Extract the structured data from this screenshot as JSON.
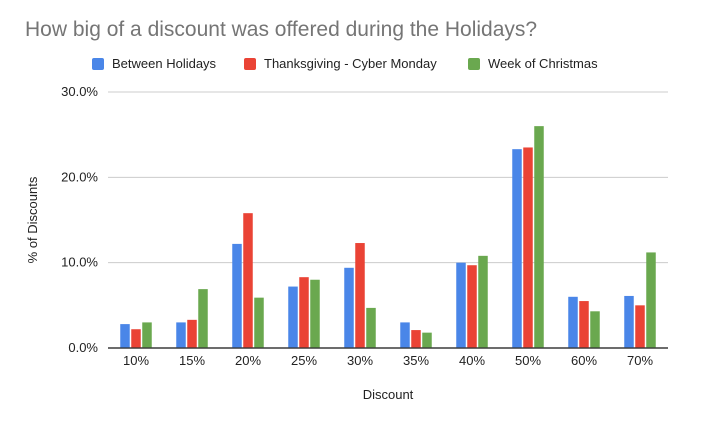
{
  "chart_data": {
    "type": "bar",
    "title": "How big of a discount was offered during the Holidays?",
    "xlabel": "Discount",
    "ylabel": "% of Discounts",
    "categories": [
      "10%",
      "15%",
      "20%",
      "25%",
      "30%",
      "35%",
      "40%",
      "50%",
      "60%",
      "70%"
    ],
    "series": [
      {
        "name": "Between Holidays",
        "color": "#4a86e8",
        "values": [
          2.8,
          3.0,
          12.2,
          7.2,
          9.4,
          3.0,
          10.0,
          23.3,
          6.0,
          6.1
        ]
      },
      {
        "name": "Thanksgiving - Cyber Monday",
        "color": "#ea4335",
        "values": [
          2.2,
          3.3,
          15.8,
          8.3,
          12.3,
          2.1,
          9.7,
          23.5,
          5.5,
          5.0
        ]
      },
      {
        "name": "Week of Christmas",
        "color": "#6aa84f",
        "values": [
          3.0,
          6.9,
          5.9,
          8.0,
          4.7,
          1.8,
          10.8,
          26.0,
          4.3,
          11.2
        ]
      }
    ],
    "ylim": [
      0,
      30
    ],
    "yticks": [
      0,
      10,
      20,
      30
    ],
    "ytick_labels": [
      "0.0%",
      "10.0%",
      "20.0%",
      "30.0%"
    ],
    "grid": true,
    "legend_position": "top"
  }
}
